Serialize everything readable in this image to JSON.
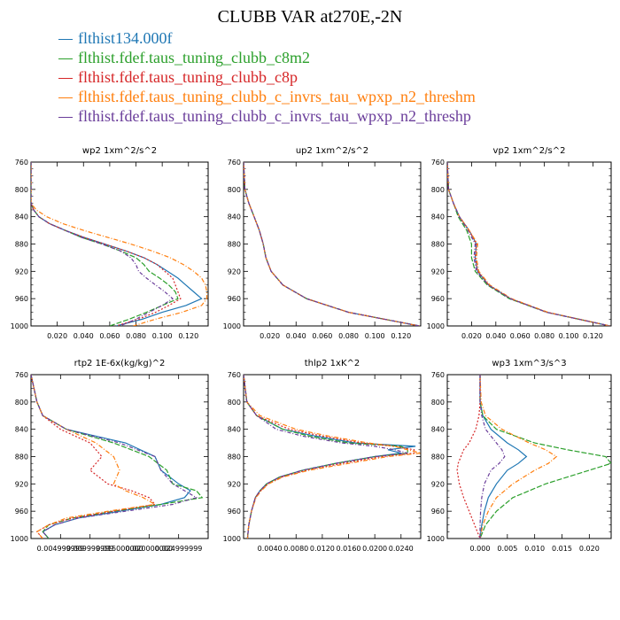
{
  "title": "CLUBB VAR at270E,-2N",
  "legend": [
    {
      "name": "flthist134.000f",
      "color": "#1f77b4"
    },
    {
      "name": "flthist.fdef.taus_tuning_clubb_c8m2",
      "color": "#2ca02c"
    },
    {
      "name": "flthist.fdef.taus_tuning_clubb_c8p",
      "color": "#d62728"
    },
    {
      "name": "flthist.fdef.taus_tuning_clubb_c_invrs_tau_wpxp_n2_threshm",
      "color": "#ff7f0e"
    },
    {
      "name": "flthist.fdef.taus_tuning_clubb_c_invrs_tau_wpxp_n2_threshp",
      "color": "#6a3d9a"
    }
  ],
  "chart_data": [
    {
      "type": "line",
      "title": "wp2  1xm^2/s^2",
      "xlim": [
        0.0,
        0.135
      ],
      "ylim": [
        760,
        1000
      ],
      "xticks": [
        0.02,
        0.04,
        0.06,
        0.08,
        0.1,
        0.12
      ],
      "xtick_labels": [
        "0.020",
        "0.040",
        "0.060",
        "0.080",
        "0.100",
        "0.120"
      ],
      "yticks": [
        760,
        800,
        840,
        880,
        920,
        960,
        1000
      ],
      "y": [
        760,
        800,
        820,
        830,
        840,
        850,
        860,
        870,
        880,
        890,
        900,
        910,
        920,
        930,
        940,
        950,
        960,
        970,
        980,
        990,
        1000
      ],
      "series": [
        {
          "name": "flthist134.000f",
          "values": [
            0,
            0,
            0,
            0.002,
            0.006,
            0.014,
            0.026,
            0.04,
            0.056,
            0.072,
            0.086,
            0.096,
            0.104,
            0.112,
            0.118,
            0.124,
            0.13,
            0.118,
            0.1,
            0.085,
            0.065
          ]
        },
        {
          "name": "flthist.fdef.taus_tuning_clubb_c8m2",
          "values": [
            0,
            0,
            0,
            0.002,
            0.006,
            0.014,
            0.026,
            0.038,
            0.054,
            0.068,
            0.08,
            0.086,
            0.09,
            0.098,
            0.105,
            0.11,
            0.112,
            0.1,
            0.088,
            0.075,
            0.06
          ]
        },
        {
          "name": "flthist.fdef.taus_tuning_clubb_c8p",
          "values": [
            0,
            0,
            0,
            0.002,
            0.006,
            0.014,
            0.026,
            0.04,
            0.056,
            0.072,
            0.086,
            0.096,
            0.102,
            0.108,
            0.11,
            0.112,
            0.114,
            0.105,
            0.095,
            0.082,
            0.065
          ]
        },
        {
          "name": "flthist.fdef.taus_tuning_clubb_c_invrs_tau_wpxp_n2_threshm",
          "values": [
            0,
            0,
            0,
            0.004,
            0.012,
            0.024,
            0.04,
            0.058,
            0.076,
            0.092,
            0.106,
            0.116,
            0.124,
            0.13,
            0.133,
            0.134,
            0.134,
            0.13,
            0.115,
            0.095,
            0.078
          ]
        },
        {
          "name": "flthist.fdef.taus_tuning_clubb_c_invrs_tau_wpxp_n2_threshp",
          "values": [
            0,
            0,
            0,
            0.002,
            0.006,
            0.014,
            0.026,
            0.038,
            0.054,
            0.068,
            0.076,
            0.08,
            0.082,
            0.088,
            0.095,
            0.102,
            0.108,
            0.1,
            0.09,
            0.08,
            0.068
          ]
        }
      ]
    },
    {
      "type": "line",
      "title": "up2  1xm^2/s^2",
      "xlim": [
        0.0,
        0.135
      ],
      "ylim": [
        760,
        1000
      ],
      "xticks": [
        0.02,
        0.04,
        0.06,
        0.08,
        0.1,
        0.12
      ],
      "xtick_labels": [
        "0.020",
        "0.040",
        "0.060",
        "0.080",
        "0.100",
        "0.120"
      ],
      "yticks": [
        760,
        800,
        840,
        880,
        920,
        960,
        1000
      ],
      "y": [
        760,
        800,
        820,
        840,
        860,
        880,
        900,
        920,
        940,
        960,
        980,
        1000
      ],
      "series": [
        {
          "name": "flthist134.000f",
          "values": [
            0,
            0.001,
            0.004,
            0.008,
            0.012,
            0.015,
            0.017,
            0.021,
            0.03,
            0.048,
            0.08,
            0.134
          ]
        },
        {
          "name": "flthist.fdef.taus_tuning_clubb_c8m2",
          "values": [
            0,
            0.001,
            0.004,
            0.008,
            0.012,
            0.015,
            0.017,
            0.021,
            0.03,
            0.048,
            0.08,
            0.134
          ]
        },
        {
          "name": "flthist.fdef.taus_tuning_clubb_c8p",
          "values": [
            0,
            0.001,
            0.004,
            0.008,
            0.012,
            0.015,
            0.017,
            0.021,
            0.03,
            0.048,
            0.08,
            0.134
          ]
        },
        {
          "name": "flthist.fdef.taus_tuning_clubb_c_invrs_tau_wpxp_n2_threshm",
          "values": [
            0,
            0.001,
            0.004,
            0.008,
            0.012,
            0.015,
            0.017,
            0.021,
            0.03,
            0.048,
            0.08,
            0.134
          ]
        },
        {
          "name": "flthist.fdef.taus_tuning_clubb_c_invrs_tau_wpxp_n2_threshp",
          "values": [
            0,
            0.001,
            0.004,
            0.008,
            0.012,
            0.015,
            0.017,
            0.021,
            0.03,
            0.048,
            0.08,
            0.134
          ]
        }
      ]
    },
    {
      "type": "line",
      "title": "vp2  1xm^2/s^2",
      "xlim": [
        0.0,
        0.135
      ],
      "ylim": [
        760,
        1000
      ],
      "xticks": [
        0.02,
        0.04,
        0.06,
        0.08,
        0.1,
        0.12
      ],
      "xtick_labels": [
        "0.020",
        "0.040",
        "0.060",
        "0.080",
        "0.100",
        "0.120"
      ],
      "yticks": [
        760,
        800,
        840,
        880,
        920,
        960,
        1000
      ],
      "y": [
        760,
        800,
        820,
        840,
        860,
        880,
        900,
        920,
        940,
        960,
        980,
        1000
      ],
      "series": [
        {
          "name": "flthist134.000f",
          "values": [
            0,
            0.001,
            0.005,
            0.01,
            0.018,
            0.024,
            0.023,
            0.025,
            0.034,
            0.052,
            0.082,
            0.134
          ]
        },
        {
          "name": "flthist.fdef.taus_tuning_clubb_c8m2",
          "values": [
            0,
            0.001,
            0.005,
            0.009,
            0.016,
            0.02,
            0.02,
            0.023,
            0.033,
            0.051,
            0.082,
            0.134
          ]
        },
        {
          "name": "flthist.fdef.taus_tuning_clubb_c8p",
          "values": [
            0,
            0.001,
            0.005,
            0.01,
            0.018,
            0.024,
            0.023,
            0.025,
            0.034,
            0.052,
            0.082,
            0.134
          ]
        },
        {
          "name": "flthist.fdef.taus_tuning_clubb_c_invrs_tau_wpxp_n2_threshm",
          "values": [
            0,
            0.001,
            0.005,
            0.01,
            0.018,
            0.025,
            0.024,
            0.026,
            0.035,
            0.053,
            0.083,
            0.134
          ]
        },
        {
          "name": "flthist.fdef.taus_tuning_clubb_c_invrs_tau_wpxp_n2_threshp",
          "values": [
            0,
            0.001,
            0.005,
            0.01,
            0.017,
            0.023,
            0.022,
            0.024,
            0.034,
            0.052,
            0.082,
            0.134
          ]
        }
      ]
    },
    {
      "type": "line",
      "title": "rtp2  1E-6x(kg/kg)^2",
      "xlim": [
        0.0,
        0.03
      ],
      "ylim": [
        760,
        1000
      ],
      "xticks": [
        0.005,
        0.01,
        0.015,
        0.02,
        0.025
      ],
      "xtick_labels": [
        "0.004999999",
        "0.009999999",
        "0.015000000",
        "0.020000000",
        "0.024999999"
      ],
      "yticks": [
        760,
        800,
        840,
        880,
        920,
        960,
        1000
      ],
      "y": [
        760,
        800,
        820,
        840,
        860,
        880,
        900,
        920,
        930,
        940,
        950,
        960,
        970,
        980,
        990,
        1000
      ],
      "series": [
        {
          "name": "flthist134.000f",
          "values": [
            0,
            0.001,
            0.002,
            0.006,
            0.016,
            0.021,
            0.022,
            0.025,
            0.027,
            0.026,
            0.022,
            0.015,
            0.008,
            0.004,
            0.002,
            0.003
          ]
        },
        {
          "name": "flthist.fdef.taus_tuning_clubb_c8m2",
          "values": [
            0,
            0.001,
            0.002,
            0.006,
            0.014,
            0.02,
            0.023,
            0.024,
            0.028,
            0.029,
            0.022,
            0.014,
            0.007,
            0.003,
            0.002,
            0.003
          ]
        },
        {
          "name": "flthist.fdef.taus_tuning_clubb_c8p",
          "values": [
            0,
            0.001,
            0.002,
            0.005,
            0.01,
            0.012,
            0.01,
            0.013,
            0.017,
            0.02,
            0.021,
            0.014,
            0.007,
            0.003,
            0.001,
            0.002
          ]
        },
        {
          "name": "flthist.fdef.taus_tuning_clubb_c_invrs_tau_wpxp_n2_threshm",
          "values": [
            0,
            0.001,
            0.002,
            0.006,
            0.011,
            0.014,
            0.015,
            0.014,
            0.016,
            0.019,
            0.021,
            0.013,
            0.006,
            0.003,
            0.001,
            0.002
          ]
        },
        {
          "name": "flthist.fdef.taus_tuning_clubb_c_invrs_tau_wpxp_n2_threshp",
          "values": [
            0,
            0.001,
            0.002,
            0.006,
            0.015,
            0.021,
            0.022,
            0.024,
            0.026,
            0.028,
            0.024,
            0.016,
            0.008,
            0.004,
            0.002,
            0.003
          ]
        }
      ]
    },
    {
      "type": "line",
      "title": "thlp2  1xK^2",
      "xlim": [
        0.0,
        0.027
      ],
      "ylim": [
        760,
        1000
      ],
      "xticks": [
        0.004,
        0.008,
        0.012,
        0.016,
        0.02,
        0.024
      ],
      "xtick_labels": [
        "0.0040",
        "0.0080",
        "0.0120",
        "0.0160",
        "0.0200",
        "0.0240"
      ],
      "yticks": [
        760,
        800,
        840,
        880,
        920,
        960,
        1000
      ],
      "y": [
        760,
        800,
        820,
        840,
        850,
        860,
        865,
        870,
        875,
        880,
        890,
        900,
        910,
        920,
        930,
        940,
        960,
        980,
        1000
      ],
      "series": [
        {
          "name": "flthist134.000f",
          "values": [
            0,
            0.0005,
            0.002,
            0.006,
            0.011,
            0.017,
            0.0262,
            0.022,
            0.024,
            0.02,
            0.014,
            0.009,
            0.0055,
            0.0035,
            0.0025,
            0.0018,
            0.0012,
            0.0008,
            0.0006
          ]
        },
        {
          "name": "flthist.fdef.taus_tuning_clubb_c8m2",
          "values": [
            0,
            0.0005,
            0.002,
            0.006,
            0.01,
            0.016,
            0.024,
            0.025,
            0.025,
            0.02,
            0.014,
            0.009,
            0.0055,
            0.0035,
            0.0025,
            0.0018,
            0.0012,
            0.0008,
            0.0006
          ]
        },
        {
          "name": "flthist.fdef.taus_tuning_clubb_c8p",
          "values": [
            0,
            0.0005,
            0.002,
            0.007,
            0.012,
            0.018,
            0.023,
            0.026,
            0.026,
            0.021,
            0.015,
            0.0095,
            0.0058,
            0.0037,
            0.0026,
            0.0018,
            0.0012,
            0.0008,
            0.0006
          ]
        },
        {
          "name": "flthist.fdef.taus_tuning_clubb_c_invrs_tau_wpxp_n2_threshm",
          "values": [
            0,
            0.0005,
            0.0025,
            0.008,
            0.013,
            0.019,
            0.023,
            0.025,
            0.027,
            0.022,
            0.016,
            0.01,
            0.006,
            0.0038,
            0.0027,
            0.0019,
            0.0012,
            0.0008,
            0.0006
          ]
        },
        {
          "name": "flthist.fdef.taus_tuning_clubb_c_invrs_tau_wpxp_n2_threshp",
          "values": [
            0,
            0.0005,
            0.002,
            0.005,
            0.009,
            0.015,
            0.02,
            0.023,
            0.025,
            0.02,
            0.014,
            0.009,
            0.0055,
            0.0035,
            0.0025,
            0.0018,
            0.0012,
            0.0008,
            0.0006
          ]
        }
      ]
    },
    {
      "type": "line",
      "title": "wp3  1xm^3/s^3",
      "xlim": [
        -0.006,
        0.024
      ],
      "ylim": [
        760,
        1000
      ],
      "xticks": [
        0.0,
        0.005,
        0.01,
        0.015,
        0.02
      ],
      "xtick_labels": [
        "0.000",
        "0.005",
        "0.010",
        "0.015",
        "0.020"
      ],
      "yticks": [
        760,
        800,
        840,
        880,
        920,
        960,
        1000
      ],
      "y": [
        760,
        800,
        820,
        840,
        860,
        870,
        880,
        890,
        900,
        920,
        940,
        960,
        980,
        1000
      ],
      "series": [
        {
          "name": "flthist134.000f",
          "values": [
            0,
            0,
            0.0005,
            0.002,
            0.005,
            0.007,
            0.0085,
            0.007,
            0.005,
            0.003,
            0.0015,
            0.0008,
            0.0003,
            0
          ]
        },
        {
          "name": "flthist.fdef.taus_tuning_clubb_c8m2",
          "values": [
            0,
            0,
            0.0005,
            0.003,
            0.01,
            0.016,
            0.023,
            0.024,
            0.02,
            0.012,
            0.006,
            0.003,
            0.001,
            0
          ]
        },
        {
          "name": "flthist.fdef.taus_tuning_clubb_c8p",
          "values": [
            0,
            0,
            -0.0002,
            -0.0008,
            -0.002,
            -0.003,
            -0.0035,
            -0.004,
            -0.0042,
            -0.0038,
            -0.003,
            -0.002,
            -0.001,
            0
          ]
        },
        {
          "name": "flthist.fdef.taus_tuning_clubb_c_invrs_tau_wpxp_n2_threshm",
          "values": [
            0,
            0.0002,
            0.001,
            0.004,
            0.009,
            0.012,
            0.014,
            0.0125,
            0.01,
            0.006,
            0.003,
            0.0015,
            0.0005,
            0
          ]
        },
        {
          "name": "flthist.fdef.taus_tuning_clubb_c_invrs_tau_wpxp_n2_threshp",
          "values": [
            0,
            0,
            0.0003,
            0.001,
            0.003,
            0.004,
            0.0045,
            0.0035,
            0.002,
            0.0008,
            0.0003,
            0.0001,
            0,
            0
          ]
        }
      ]
    }
  ]
}
